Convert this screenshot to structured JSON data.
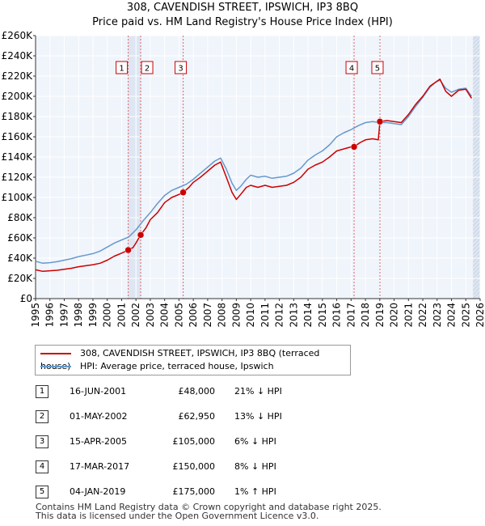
{
  "chart_data": {
    "type": "line",
    "title": "308, CAVENDISH STREET, IPSWICH, IP3 8BQ",
    "subtitle": "Price paid vs. HM Land Registry's House Price Index (HPI)",
    "xlabel": "",
    "ylabel": "",
    "xlim": [
      1995,
      2026
    ],
    "ylim": [
      0,
      260000
    ],
    "y_ticks": [
      0,
      20000,
      40000,
      60000,
      80000,
      100000,
      120000,
      140000,
      160000,
      180000,
      200000,
      220000,
      240000,
      260000
    ],
    "y_tick_labels": [
      "£0",
      "£20K",
      "£40K",
      "£60K",
      "£80K",
      "£100K",
      "£120K",
      "£140K",
      "£160K",
      "£180K",
      "£200K",
      "£220K",
      "£240K",
      "£260K"
    ],
    "x_ticks": [
      1995,
      1996,
      1997,
      1998,
      1999,
      2000,
      2001,
      2002,
      2003,
      2004,
      2005,
      2006,
      2007,
      2008,
      2009,
      2010,
      2011,
      2012,
      2013,
      2014,
      2015,
      2016,
      2017,
      2018,
      2019,
      2020,
      2021,
      2022,
      2023,
      2024,
      2025,
      2026
    ],
    "x_tick_labels": [
      "1995",
      "1996",
      "1997",
      "1998",
      "1999",
      "2000",
      "2001",
      "2002",
      "2003",
      "2004",
      "2005",
      "2006",
      "2007",
      "2008",
      "2009",
      "2010",
      "2011",
      "2012",
      "2013",
      "2014",
      "2015",
      "2016",
      "2017",
      "2018",
      "2019",
      "2020",
      "2021",
      "2022",
      "2023",
      "2024",
      "2025",
      "2026"
    ],
    "grid": true,
    "shaded_regions": [
      [
        2001.46,
        2002.33
      ],
      [
        2025.5,
        2026
      ]
    ],
    "series": [
      {
        "name": "308, CAVENDISH STREET, IPSWICH, IP3 8BQ (terraced house)",
        "color": "#cc0000",
        "x": [
          1995.0,
          1995.5,
          1996.0,
          1996.5,
          1997.0,
          1997.5,
          1998.0,
          1998.5,
          1999.0,
          1999.5,
          2000.0,
          2000.5,
          2001.0,
          2001.46,
          2001.8,
          2002.0,
          2002.33,
          2002.7,
          2003.0,
          2003.5,
          2004.0,
          2004.5,
          2005.0,
          2005.29,
          2005.7,
          2006.0,
          2006.5,
          2007.0,
          2007.5,
          2007.9,
          2008.3,
          2008.7,
          2009.0,
          2009.3,
          2009.7,
          2010.0,
          2010.5,
          2011.0,
          2011.5,
          2012.0,
          2012.5,
          2013.0,
          2013.5,
          2014.0,
          2014.5,
          2015.0,
          2015.5,
          2016.0,
          2016.5,
          2017.0,
          2017.21,
          2017.6,
          2018.0,
          2018.5,
          2018.9,
          2019.01,
          2019.5,
          2020.0,
          2020.5,
          2021.0,
          2021.5,
          2022.0,
          2022.5,
          2022.9,
          2023.2,
          2023.6,
          2024.0,
          2024.5,
          2025.0,
          2025.4
        ],
        "y": [
          28500,
          27000,
          27500,
          28000,
          29000,
          30000,
          31500,
          32500,
          33500,
          35000,
          38000,
          42000,
          45000,
          48000,
          50500,
          55000,
          62950,
          70000,
          78000,
          85000,
          95000,
          100000,
          103000,
          105000,
          110000,
          115000,
          120000,
          126000,
          132000,
          135000,
          120000,
          105000,
          98000,
          103000,
          110000,
          112000,
          110000,
          112000,
          110000,
          111000,
          112000,
          115000,
          120000,
          128000,
          132000,
          135000,
          140000,
          146000,
          148000,
          150000,
          150000,
          154000,
          157000,
          158000,
          157000,
          175000,
          176000,
          175000,
          174000,
          182000,
          192000,
          200000,
          210000,
          214000,
          217000,
          205000,
          200000,
          206000,
          207000,
          198000
        ]
      },
      {
        "name": "HPI: Average price, terraced house, Ipswich",
        "color": "#6699cc",
        "x": [
          1995.0,
          1995.5,
          1996.0,
          1996.5,
          1997.0,
          1997.5,
          1998.0,
          1998.5,
          1999.0,
          1999.5,
          2000.0,
          2000.5,
          2001.0,
          2001.5,
          2002.0,
          2002.5,
          2003.0,
          2003.5,
          2004.0,
          2004.5,
          2005.0,
          2005.5,
          2006.0,
          2006.5,
          2007.0,
          2007.5,
          2007.9,
          2008.3,
          2008.7,
          2009.0,
          2009.3,
          2009.7,
          2010.0,
          2010.5,
          2011.0,
          2011.5,
          2012.0,
          2012.5,
          2013.0,
          2013.5,
          2014.0,
          2014.5,
          2015.0,
          2015.5,
          2016.0,
          2016.5,
          2017.0,
          2017.5,
          2018.0,
          2018.5,
          2019.0,
          2019.5,
          2020.0,
          2020.5,
          2021.0,
          2021.5,
          2022.0,
          2022.5,
          2022.9,
          2023.2,
          2023.6,
          2024.0,
          2024.5,
          2025.0,
          2025.4
        ],
        "y": [
          37000,
          35000,
          35500,
          36500,
          38000,
          39500,
          41500,
          43000,
          44500,
          47000,
          51000,
          55000,
          58000,
          61000,
          68000,
          77000,
          85000,
          94000,
          102000,
          107000,
          110000,
          113000,
          118000,
          124000,
          130000,
          136000,
          139000,
          128000,
          114000,
          107000,
          111000,
          118000,
          122000,
          120000,
          121000,
          119000,
          120000,
          121000,
          124000,
          129000,
          137000,
          142000,
          146000,
          152000,
          160000,
          164000,
          167000,
          171000,
          174000,
          175000,
          174000,
          174000,
          173000,
          172000,
          180000,
          190000,
          199000,
          209000,
          214000,
          216000,
          208000,
          204000,
          207000,
          208000,
          200000
        ]
      }
    ],
    "sales": [
      {
        "label": "1",
        "x": 2001.46,
        "y": 48000
      },
      {
        "label": "2",
        "x": 2002.33,
        "y": 62950
      },
      {
        "label": "3",
        "x": 2005.29,
        "y": 105000
      },
      {
        "label": "4",
        "x": 2017.21,
        "y": 150000
      },
      {
        "label": "5",
        "x": 2019.01,
        "y": 175000
      }
    ]
  },
  "legend": {
    "items": [
      {
        "label": "308, CAVENDISH STREET, IPSWICH, IP3 8BQ (terraced house)",
        "color": "#cc0000"
      },
      {
        "label": "HPI: Average price, terraced house, Ipswich",
        "color": "#6699cc"
      }
    ]
  },
  "transactions": [
    {
      "num": "1",
      "date": "16-JUN-2001",
      "price": "£48,000",
      "hpi": "21% ↓ HPI"
    },
    {
      "num": "2",
      "date": "01-MAY-2002",
      "price": "£62,950",
      "hpi": "13% ↓ HPI"
    },
    {
      "num": "3",
      "date": "15-APR-2005",
      "price": "£105,000",
      "hpi": "6% ↓ HPI"
    },
    {
      "num": "4",
      "date": "17-MAR-2017",
      "price": "£150,000",
      "hpi": "8% ↓ HPI"
    },
    {
      "num": "5",
      "date": "04-JAN-2019",
      "price": "£175,000",
      "hpi": "1% ↑ HPI"
    }
  ],
  "footer": {
    "line1": "Contains HM Land Registry data © Crown copyright and database right 2025.",
    "line2": "This data is licensed under the Open Government Licence v3.0."
  }
}
